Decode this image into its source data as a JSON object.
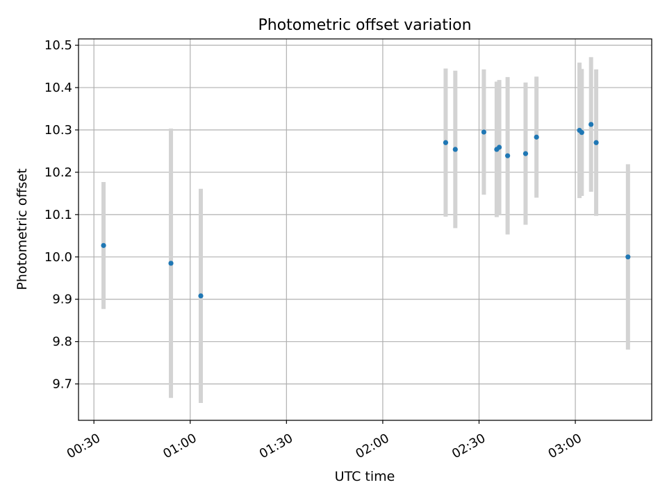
{
  "chart_data": {
    "type": "scatter",
    "title": "Photometric offset variation",
    "xlabel": "UTC time",
    "ylabel": "Photometric offset",
    "x_unit": "minutes after 00:00 UTC",
    "xlim": [
      25.2,
      203.8
    ],
    "ylim": [
      9.614,
      10.515
    ],
    "grid": true,
    "x_ticks": [
      {
        "value": 30,
        "label": "00:30"
      },
      {
        "value": 60,
        "label": "01:00"
      },
      {
        "value": 90,
        "label": "01:30"
      },
      {
        "value": 120,
        "label": "02:00"
      },
      {
        "value": 150,
        "label": "02:30"
      },
      {
        "value": 180,
        "label": "03:00"
      }
    ],
    "y_ticks": [
      {
        "value": 9.7,
        "label": "9.7"
      },
      {
        "value": 9.8,
        "label": "9.8"
      },
      {
        "value": 9.9,
        "label": "9.9"
      },
      {
        "value": 10.0,
        "label": "10.0"
      },
      {
        "value": 10.1,
        "label": "10.1"
      },
      {
        "value": 10.2,
        "label": "10.2"
      },
      {
        "value": 10.3,
        "label": "10.3"
      },
      {
        "value": 10.4,
        "label": "10.4"
      },
      {
        "value": 10.5,
        "label": "10.5"
      }
    ],
    "series": [
      {
        "name": "offset",
        "point_color": "#1f77b4",
        "errorbar_color": "#d3d3d3",
        "points": [
          {
            "x": 33.0,
            "y": 10.027,
            "err": 0.15
          },
          {
            "x": 54.0,
            "y": 9.985,
            "err": 0.318
          },
          {
            "x": 63.3,
            "y": 9.908,
            "err": 0.253
          },
          {
            "x": 139.6,
            "y": 10.27,
            "err": 0.175
          },
          {
            "x": 142.6,
            "y": 10.254,
            "err": 0.186
          },
          {
            "x": 151.5,
            "y": 10.295,
            "err": 0.148
          },
          {
            "x": 155.5,
            "y": 10.254,
            "err": 0.16
          },
          {
            "x": 156.3,
            "y": 10.259,
            "err": 0.159
          },
          {
            "x": 158.9,
            "y": 10.239,
            "err": 0.186
          },
          {
            "x": 164.5,
            "y": 10.244,
            "err": 0.168
          },
          {
            "x": 167.9,
            "y": 10.283,
            "err": 0.143
          },
          {
            "x": 181.3,
            "y": 10.299,
            "err": 0.16
          },
          {
            "x": 182.0,
            "y": 10.294,
            "err": 0.15
          },
          {
            "x": 184.9,
            "y": 10.313,
            "err": 0.159
          },
          {
            "x": 186.5,
            "y": 10.27,
            "err": 0.173
          },
          {
            "x": 196.4,
            "y": 10.0,
            "err": 0.219
          }
        ]
      }
    ]
  }
}
